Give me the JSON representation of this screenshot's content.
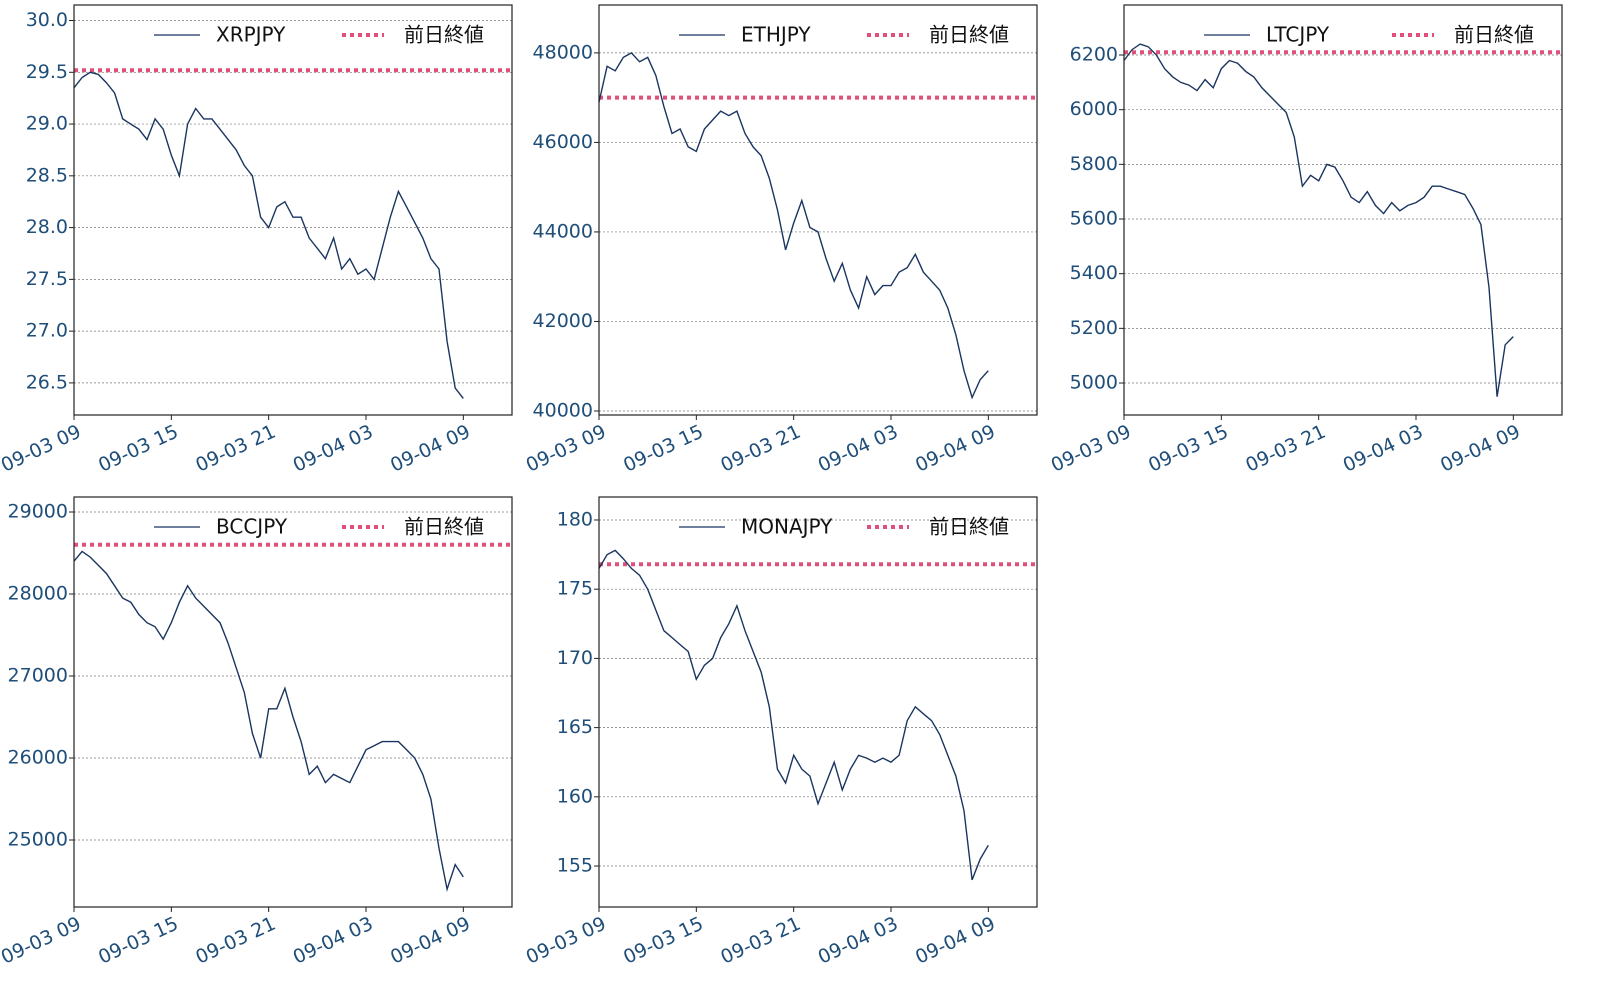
{
  "chart_data": [
    {
      "type": "line",
      "x": [
        "09-03 09:00",
        "09-03 09:30",
        "09-03 10:00",
        "09-03 10:30",
        "09-03 11:00",
        "09-03 11:30",
        "09-03 12:00",
        "09-03 12:30",
        "09-03 13:00",
        "09-03 13:30",
        "09-03 14:00",
        "09-03 14:30",
        "09-03 15:00",
        "09-03 15:30",
        "09-03 16:00",
        "09-03 16:30",
        "09-03 17:00",
        "09-03 17:30",
        "09-03 18:00",
        "09-03 18:30",
        "09-03 19:00",
        "09-03 19:30",
        "09-03 20:00",
        "09-03 20:30",
        "09-03 21:00",
        "09-03 21:30",
        "09-03 22:00",
        "09-03 22:30",
        "09-03 23:00",
        "09-03 23:30",
        "09-04 00:00",
        "09-04 00:30",
        "09-04 01:00",
        "09-04 01:30",
        "09-04 02:00",
        "09-04 02:30",
        "09-04 03:00",
        "09-04 03:30",
        "09-04 04:00",
        "09-04 04:30",
        "09-04 05:00",
        "09-04 05:30",
        "09-04 06:00",
        "09-04 06:30",
        "09-04 07:00",
        "09-04 07:30",
        "09-04 08:00",
        "09-04 08:30",
        "09-04 09:00"
      ],
      "series": [
        {
          "name": "XRPJPY",
          "color": "#1a3560",
          "values": [
            29.35,
            29.45,
            29.5,
            29.48,
            29.4,
            29.3,
            29.05,
            29.0,
            28.95,
            28.85,
            29.05,
            28.95,
            28.7,
            28.5,
            29.0,
            29.15,
            29.05,
            29.05,
            28.95,
            28.85,
            28.75,
            28.6,
            28.5,
            28.1,
            28.0,
            28.2,
            28.25,
            28.1,
            28.1,
            27.9,
            27.8,
            27.7,
            27.9,
            27.6,
            27.7,
            27.55,
            27.6,
            27.5,
            27.8,
            28.1,
            28.35,
            28.2,
            28.05,
            27.9,
            27.7,
            27.6,
            26.9,
            26.45,
            26.35
          ]
        }
      ],
      "hline": {
        "name": "前日終値",
        "value": 29.52,
        "color": "#e0507a"
      },
      "xlim": [
        "09-03 09:00",
        "09-04 12:00"
      ],
      "xticks": [
        "09-03 09",
        "09-03 15",
        "09-03 21",
        "09-04 03",
        "09-04 09"
      ],
      "ylim": [
        26.19,
        30.15
      ],
      "yticks": [
        {
          "value": 26.5,
          "label": "26.5"
        },
        {
          "value": 27,
          "label": "27.0"
        },
        {
          "value": 27.5,
          "label": "27.5"
        },
        {
          "value": 28,
          "label": "28.0"
        },
        {
          "value": 28.5,
          "label": "28.5"
        },
        {
          "value": 29,
          "label": "29.0"
        },
        {
          "value": 29.5,
          "label": "29.5"
        },
        {
          "value": 30,
          "label": "30.0"
        }
      ],
      "grid": true
    },
    {
      "type": "line",
      "x": [
        "09-03 09:00",
        "09-03 09:30",
        "09-03 10:00",
        "09-03 10:30",
        "09-03 11:00",
        "09-03 11:30",
        "09-03 12:00",
        "09-03 12:30",
        "09-03 13:00",
        "09-03 13:30",
        "09-03 14:00",
        "09-03 14:30",
        "09-03 15:00",
        "09-03 15:30",
        "09-03 16:00",
        "09-03 16:30",
        "09-03 17:00",
        "09-03 17:30",
        "09-03 18:00",
        "09-03 18:30",
        "09-03 19:00",
        "09-03 19:30",
        "09-03 20:00",
        "09-03 20:30",
        "09-03 21:00",
        "09-03 21:30",
        "09-03 22:00",
        "09-03 22:30",
        "09-03 23:00",
        "09-03 23:30",
        "09-04 00:00",
        "09-04 00:30",
        "09-04 01:00",
        "09-04 01:30",
        "09-04 02:00",
        "09-04 02:30",
        "09-04 03:00",
        "09-04 03:30",
        "09-04 04:00",
        "09-04 04:30",
        "09-04 05:00",
        "09-04 05:30",
        "09-04 06:00",
        "09-04 06:30",
        "09-04 07:00",
        "09-04 07:30",
        "09-04 08:00",
        "09-04 08:30",
        "09-04 09:00"
      ],
      "series": [
        {
          "name": "ETHJPY",
          "color": "#1a3560",
          "values": [
            46900,
            47700,
            47600,
            47900,
            48000,
            47800,
            47900,
            47500,
            46800,
            46200,
            46300,
            45900,
            45800,
            46300,
            46500,
            46700,
            46600,
            46700,
            46200,
            45900,
            45700,
            45200,
            44500,
            43600,
            44200,
            44700,
            44100,
            44000,
            43400,
            42900,
            43300,
            42700,
            42300,
            43000,
            42600,
            42800,
            42800,
            43100,
            43200,
            43500,
            43100,
            42900,
            42700,
            42300,
            41700,
            40900,
            40300,
            40700,
            40900
          ]
        }
      ],
      "hline": {
        "name": "前日終値",
        "value": 47000,
        "color": "#e0507a"
      },
      "xlim": [
        "09-03 09:00",
        "09-04 12:00"
      ],
      "xticks": [
        "09-03 09",
        "09-03 15",
        "09-03 21",
        "09-04 03",
        "09-04 09"
      ],
      "ylim": [
        39910,
        49070
      ],
      "yticks": [
        40000,
        42000,
        44000,
        46000,
        48000
      ],
      "grid": true
    },
    {
      "type": "line",
      "x": [
        "09-03 09:00",
        "09-03 09:30",
        "09-03 10:00",
        "09-03 10:30",
        "09-03 11:00",
        "09-03 11:30",
        "09-03 12:00",
        "09-03 12:30",
        "09-03 13:00",
        "09-03 13:30",
        "09-03 14:00",
        "09-03 14:30",
        "09-03 15:00",
        "09-03 15:30",
        "09-03 16:00",
        "09-03 16:30",
        "09-03 17:00",
        "09-03 17:30",
        "09-03 18:00",
        "09-03 18:30",
        "09-03 19:00",
        "09-03 19:30",
        "09-03 20:00",
        "09-03 20:30",
        "09-03 21:00",
        "09-03 21:30",
        "09-03 22:00",
        "09-03 22:30",
        "09-03 23:00",
        "09-03 23:30",
        "09-04 00:00",
        "09-04 00:30",
        "09-04 01:00",
        "09-04 01:30",
        "09-04 02:00",
        "09-04 02:30",
        "09-04 03:00",
        "09-04 03:30",
        "09-04 04:00",
        "09-04 04:30",
        "09-04 05:00",
        "09-04 05:30",
        "09-04 06:00",
        "09-04 06:30",
        "09-04 07:00",
        "09-04 07:30",
        "09-04 08:00",
        "09-04 08:30",
        "09-04 09:00"
      ],
      "series": [
        {
          "name": "LTCJPY",
          "color": "#1a3560",
          "values": [
            6180,
            6220,
            6240,
            6230,
            6200,
            6150,
            6120,
            6100,
            6090,
            6070,
            6110,
            6080,
            6150,
            6180,
            6170,
            6140,
            6120,
            6080,
            6050,
            6020,
            5990,
            5900,
            5720,
            5760,
            5740,
            5800,
            5790,
            5740,
            5680,
            5660,
            5700,
            5650,
            5620,
            5660,
            5630,
            5650,
            5660,
            5680,
            5720,
            5720,
            5710,
            5700,
            5690,
            5640,
            5580,
            5350,
            4950,
            5140,
            5170
          ]
        }
      ],
      "hline": {
        "name": "前日終値",
        "value": 6210,
        "color": "#e0507a"
      },
      "xlim": [
        "09-03 09:00",
        "09-04 12:00"
      ],
      "xticks": [
        "09-03 09",
        "09-03 15",
        "09-03 21",
        "09-04 03",
        "09-04 09"
      ],
      "ylim": [
        4883,
        6383
      ],
      "yticks": [
        5000,
        5200,
        5400,
        5600,
        5800,
        6000,
        6200
      ],
      "grid": true
    },
    {
      "type": "line",
      "x": [
        "09-03 09:00",
        "09-03 09:30",
        "09-03 10:00",
        "09-03 10:30",
        "09-03 11:00",
        "09-03 11:30",
        "09-03 12:00",
        "09-03 12:30",
        "09-03 13:00",
        "09-03 13:30",
        "09-03 14:00",
        "09-03 14:30",
        "09-03 15:00",
        "09-03 15:30",
        "09-03 16:00",
        "09-03 16:30",
        "09-03 17:00",
        "09-03 17:30",
        "09-03 18:00",
        "09-03 18:30",
        "09-03 19:00",
        "09-03 19:30",
        "09-03 20:00",
        "09-03 20:30",
        "09-03 21:00",
        "09-03 21:30",
        "09-03 22:00",
        "09-03 22:30",
        "09-03 23:00",
        "09-03 23:30",
        "09-04 00:00",
        "09-04 00:30",
        "09-04 01:00",
        "09-04 01:30",
        "09-04 02:00",
        "09-04 02:30",
        "09-04 03:00",
        "09-04 03:30",
        "09-04 04:00",
        "09-04 04:30",
        "09-04 05:00",
        "09-04 05:30",
        "09-04 06:00",
        "09-04 06:30",
        "09-04 07:00",
        "09-04 07:30",
        "09-04 08:00",
        "09-04 08:30",
        "09-04 09:00"
      ],
      "series": [
        {
          "name": "BCCJPY",
          "color": "#1a3560",
          "values": [
            28400,
            28520,
            28450,
            28350,
            28250,
            28100,
            27950,
            27900,
            27750,
            27650,
            27600,
            27450,
            27650,
            27900,
            28100,
            27950,
            27850,
            27750,
            27650,
            27400,
            27100,
            26800,
            26300,
            26000,
            26600,
            26600,
            26850,
            26500,
            26200,
            25800,
            25900,
            25700,
            25800,
            25750,
            25700,
            25900,
            26100,
            26150,
            26200,
            26200,
            26200,
            26100,
            26000,
            25800,
            25500,
            24900,
            24400,
            24700,
            24550
          ]
        }
      ],
      "hline": {
        "name": "前日終値",
        "value": 28600,
        "color": "#e0507a"
      },
      "xlim": [
        "09-03 09:00",
        "09-04 12:00"
      ],
      "xticks": [
        "09-03 09",
        "09-03 15",
        "09-03 21",
        "09-04 03",
        "09-04 09"
      ],
      "ylim": [
        24183,
        29183
      ],
      "yticks": [
        25000,
        26000,
        27000,
        28000,
        29000
      ],
      "grid": true
    },
    {
      "type": "line",
      "x": [
        "09-03 09:00",
        "09-03 09:30",
        "09-03 10:00",
        "09-03 10:30",
        "09-03 11:00",
        "09-03 11:30",
        "09-03 12:00",
        "09-03 12:30",
        "09-03 13:00",
        "09-03 13:30",
        "09-03 14:00",
        "09-03 14:30",
        "09-03 15:00",
        "09-03 15:30",
        "09-03 16:00",
        "09-03 16:30",
        "09-03 17:00",
        "09-03 17:30",
        "09-03 18:00",
        "09-03 18:30",
        "09-03 19:00",
        "09-03 19:30",
        "09-03 20:00",
        "09-03 20:30",
        "09-03 21:00",
        "09-03 21:30",
        "09-03 22:00",
        "09-03 22:30",
        "09-03 23:00",
        "09-03 23:30",
        "09-04 00:00",
        "09-04 00:30",
        "09-04 01:00",
        "09-04 01:30",
        "09-04 02:00",
        "09-04 02:30",
        "09-04 03:00",
        "09-04 03:30",
        "09-04 04:00",
        "09-04 04:30",
        "09-04 05:00",
        "09-04 05:30",
        "09-04 06:00",
        "09-04 06:30",
        "09-04 07:00",
        "09-04 07:30",
        "09-04 08:00",
        "09-04 08:30",
        "09-04 09:00"
      ],
      "series": [
        {
          "name": "MONAJPY",
          "color": "#1a3560",
          "values": [
            176.5,
            177.5,
            177.8,
            177.2,
            176.5,
            176.0,
            175.0,
            173.5,
            172.0,
            171.5,
            171.0,
            170.5,
            168.5,
            169.5,
            170.0,
            171.5,
            172.5,
            173.8,
            172.0,
            170.5,
            169.0,
            166.5,
            162.0,
            161.0,
            163.0,
            162.0,
            161.5,
            159.5,
            161.0,
            162.5,
            160.5,
            162.0,
            163.0,
            162.8,
            162.5,
            162.8,
            162.5,
            163.0,
            165.5,
            166.5,
            166.0,
            165.5,
            164.5,
            163.0,
            161.5,
            159.0,
            154.0,
            155.5,
            156.5
          ]
        }
      ],
      "hline": {
        "name": "前日終値",
        "value": 176.8,
        "color": "#e0507a"
      },
      "xlim": [
        "09-03 09:00",
        "09-04 12:00"
      ],
      "xticks": [
        "09-03 09",
        "09-03 15",
        "09-03 21",
        "09-04 03",
        "09-04 09"
      ],
      "ylim": [
        152.04,
        181.66
      ],
      "yticks": [
        155,
        160,
        165,
        170,
        175,
        180
      ],
      "grid": true
    }
  ]
}
